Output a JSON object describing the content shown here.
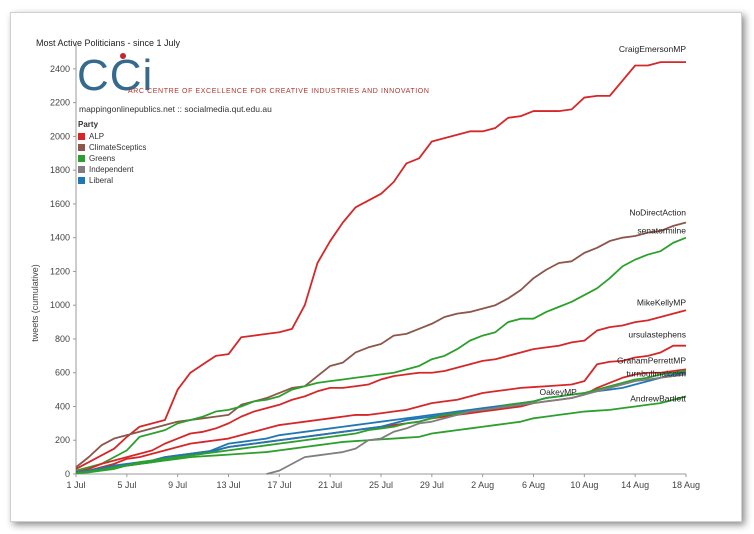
{
  "chart_data": {
    "type": "line",
    "title": "Most Active Politicians - since 1 July",
    "ylabel": "tweets (cumulative)",
    "xlabel": "",
    "ylim": [
      0,
      2500
    ],
    "x_ticks": [
      "1 Jul",
      "5 Jul",
      "9 Jul",
      "13 Jul",
      "17 Jul",
      "21 Jul",
      "25 Jul",
      "29 Jul",
      "2 Aug",
      "6 Aug",
      "10 Aug",
      "14 Aug",
      "18 Aug"
    ],
    "y_ticks": [
      0,
      200,
      400,
      600,
      800,
      1000,
      1200,
      1400,
      1600,
      1800,
      2000,
      2200,
      2400
    ],
    "grid": false,
    "legend_position": "top-left",
    "legend": {
      "title": "Party",
      "items": [
        {
          "label": "ALP",
          "color": "#d62728"
        },
        {
          "label": "ClimateSceptics",
          "color": "#8c564b"
        },
        {
          "label": "Greens",
          "color": "#2ca02c"
        },
        {
          "label": "Independent",
          "color": "#7f7f7f"
        },
        {
          "label": "Liberal",
          "color": "#1f77b4"
        }
      ]
    },
    "series": [
      {
        "name": "CraigEmersonMP",
        "party": "ALP",
        "color": "#d62728",
        "x": [
          0,
          1,
          2,
          3,
          4,
          5,
          6,
          7,
          8,
          9,
          10,
          11,
          12,
          13,
          14,
          15,
          16,
          17,
          18,
          19,
          20,
          21,
          22,
          23,
          24,
          25,
          26,
          27,
          28,
          29,
          30,
          31,
          32,
          33,
          34,
          35,
          36,
          37,
          38,
          39,
          40,
          41,
          42,
          43,
          44,
          45,
          46,
          47,
          48
        ],
        "y": [
          30,
          70,
          110,
          150,
          220,
          280,
          300,
          320,
          500,
          600,
          650,
          700,
          710,
          810,
          820,
          830,
          840,
          860,
          1000,
          1250,
          1380,
          1490,
          1580,
          1620,
          1660,
          1730,
          1840,
          1870,
          1970,
          1990,
          2010,
          2030,
          2030,
          2050,
          2110,
          2120,
          2150,
          2150,
          2150,
          2160,
          2230,
          2240,
          2240,
          2330,
          2420,
          2420,
          2440,
          2440,
          2440
        ]
      },
      {
        "name": "NoDirectAction",
        "party": "ClimateSceptics",
        "color": "#8c564b",
        "x": [
          0,
          1,
          2,
          3,
          4,
          5,
          6,
          7,
          8,
          9,
          10,
          11,
          12,
          13,
          14,
          15,
          16,
          17,
          18,
          19,
          20,
          21,
          22,
          23,
          24,
          25,
          26,
          27,
          28,
          29,
          30,
          31,
          32,
          33,
          34,
          35,
          36,
          37,
          38,
          39,
          40,
          41,
          42,
          43,
          44,
          45,
          46,
          47,
          48
        ],
        "y": [
          40,
          100,
          170,
          210,
          230,
          250,
          270,
          290,
          310,
          320,
          330,
          340,
          350,
          410,
          430,
          450,
          480,
          510,
          520,
          580,
          640,
          660,
          720,
          750,
          770,
          820,
          830,
          860,
          890,
          930,
          950,
          960,
          980,
          1000,
          1040,
          1090,
          1160,
          1210,
          1250,
          1260,
          1310,
          1340,
          1380,
          1400,
          1410,
          1430,
          1440,
          1470,
          1490
        ]
      },
      {
        "name": "senatormilne",
        "party": "Greens",
        "color": "#2ca02c",
        "x": [
          0,
          1,
          2,
          3,
          4,
          5,
          6,
          7,
          8,
          9,
          10,
          11,
          12,
          13,
          14,
          15,
          16,
          17,
          18,
          19,
          20,
          21,
          22,
          23,
          24,
          25,
          26,
          27,
          28,
          29,
          30,
          31,
          32,
          33,
          34,
          35,
          36,
          37,
          38,
          39,
          40,
          41,
          42,
          43,
          44,
          45,
          46,
          47,
          48
        ],
        "y": [
          20,
          40,
          60,
          100,
          140,
          220,
          240,
          260,
          300,
          320,
          340,
          370,
          380,
          400,
          430,
          440,
          460,
          500,
          520,
          540,
          550,
          560,
          570,
          580,
          590,
          600,
          620,
          640,
          680,
          700,
          740,
          790,
          820,
          840,
          900,
          920,
          920,
          960,
          990,
          1020,
          1060,
          1100,
          1160,
          1230,
          1270,
          1300,
          1320,
          1370,
          1400
        ]
      },
      {
        "name": "MikeKellyMP",
        "party": "ALP",
        "color": "#d62728",
        "x": [
          0,
          1,
          2,
          3,
          4,
          5,
          6,
          7,
          8,
          9,
          10,
          11,
          12,
          13,
          14,
          15,
          16,
          17,
          18,
          19,
          20,
          21,
          22,
          23,
          24,
          25,
          26,
          27,
          28,
          29,
          30,
          31,
          32,
          33,
          34,
          35,
          36,
          37,
          38,
          39,
          40,
          41,
          42,
          43,
          44,
          45,
          46,
          47,
          48
        ],
        "y": [
          10,
          30,
          60,
          80,
          100,
          120,
          140,
          180,
          210,
          240,
          250,
          270,
          300,
          340,
          370,
          390,
          410,
          440,
          460,
          490,
          510,
          510,
          520,
          530,
          560,
          580,
          590,
          600,
          600,
          610,
          630,
          650,
          670,
          680,
          700,
          720,
          740,
          750,
          760,
          780,
          790,
          850,
          870,
          880,
          900,
          910,
          930,
          950,
          970
        ]
      },
      {
        "name": "ursulastephens",
        "party": "ALP",
        "color": "#d62728",
        "x": [
          0,
          1,
          2,
          3,
          4,
          5,
          6,
          7,
          8,
          9,
          10,
          11,
          12,
          13,
          14,
          15,
          16,
          17,
          18,
          19,
          20,
          21,
          22,
          23,
          24,
          25,
          26,
          27,
          28,
          29,
          30,
          31,
          32,
          33,
          34,
          35,
          36,
          37,
          38,
          39,
          40,
          41,
          42,
          43,
          44,
          45,
          46,
          47,
          48
        ],
        "y": [
          10,
          20,
          40,
          60,
          90,
          100,
          120,
          140,
          160,
          180,
          190,
          200,
          210,
          230,
          250,
          270,
          290,
          300,
          310,
          320,
          330,
          340,
          350,
          350,
          360,
          370,
          380,
          400,
          420,
          430,
          440,
          460,
          480,
          490,
          500,
          510,
          515,
          520,
          525,
          530,
          550,
          650,
          665,
          670,
          690,
          700,
          720,
          760,
          760
        ]
      },
      {
        "name": "GrahamPerrettMP",
        "party": "ALP",
        "color": "#d62728",
        "x": [
          0,
          1,
          2,
          3,
          4,
          5,
          6,
          7,
          8,
          9,
          10,
          11,
          12,
          13,
          14,
          15,
          16,
          17,
          18,
          19,
          20,
          21,
          22,
          23,
          24,
          25,
          26,
          27,
          28,
          29,
          30,
          31,
          32,
          33,
          34,
          35,
          36,
          37,
          38,
          39,
          40,
          41,
          42,
          43,
          44,
          45,
          46,
          47,
          48
        ],
        "y": [
          5,
          15,
          30,
          40,
          50,
          60,
          80,
          100,
          110,
          120,
          130,
          140,
          160,
          170,
          180,
          190,
          200,
          210,
          220,
          230,
          240,
          250,
          260,
          270,
          280,
          290,
          300,
          310,
          330,
          340,
          350,
          360,
          370,
          380,
          390,
          400,
          420,
          430,
          440,
          450,
          470,
          510,
          540,
          570,
          590,
          600,
          600,
          610,
          620
        ]
      },
      {
        "name": "OakeyMP",
        "party": "Liberal",
        "color": "#1f77b4",
        "x": [
          0,
          1,
          2,
          3,
          4,
          5,
          6,
          7,
          8,
          9,
          10,
          11,
          12,
          13,
          14,
          15,
          16,
          17,
          18,
          19,
          20,
          21,
          22,
          23,
          24,
          25,
          26,
          27,
          28,
          29,
          30,
          31,
          32,
          33,
          34,
          35,
          36
        ],
        "y": [
          5,
          20,
          35,
          50,
          60,
          70,
          80,
          100,
          110,
          120,
          130,
          140,
          160,
          170,
          180,
          190,
          200,
          210,
          220,
          230,
          240,
          250,
          260,
          270,
          280,
          300,
          320,
          330,
          340,
          350,
          360,
          370,
          380,
          390,
          400,
          410,
          420
        ]
      },
      {
        "name": "turnbullmalcolm",
        "party": "Liberal",
        "color": "#1f77b4",
        "x": [
          0,
          1,
          2,
          3,
          4,
          5,
          6,
          7,
          8,
          9,
          10,
          11,
          12,
          13,
          14,
          15,
          16,
          17,
          18,
          19,
          20,
          21,
          22,
          23,
          24,
          25,
          26,
          27,
          28,
          29,
          30,
          31,
          32,
          33,
          34,
          35,
          36,
          37,
          38,
          39,
          40,
          41,
          42,
          43,
          44,
          45,
          46,
          47,
          48
        ],
        "y": [
          10,
          20,
          30,
          40,
          50,
          60,
          70,
          90,
          100,
          110,
          120,
          150,
          180,
          190,
          200,
          210,
          230,
          240,
          250,
          260,
          270,
          280,
          290,
          300,
          310,
          320,
          330,
          340,
          350,
          360,
          370,
          380,
          390,
          400,
          410,
          420,
          430,
          450,
          460,
          470,
          480,
          490,
          500,
          510,
          530,
          550,
          570,
          590,
          600
        ]
      },
      {
        "name": "AndrewBartlett",
        "party": "Greens",
        "color": "#2ca02c",
        "x": [
          0,
          1,
          2,
          3,
          4,
          5,
          6,
          7,
          8,
          9,
          10,
          11,
          12,
          13,
          14,
          15,
          16,
          17,
          18,
          19,
          20,
          21,
          22,
          23,
          24,
          25,
          26,
          27,
          28,
          29,
          30,
          31,
          32,
          33,
          34,
          35,
          36,
          37,
          38,
          39,
          40,
          41,
          42,
          43,
          44,
          45,
          46,
          47,
          48
        ],
        "y": [
          5,
          15,
          25,
          40,
          50,
          60,
          70,
          80,
          90,
          100,
          105,
          110,
          115,
          120,
          125,
          130,
          140,
          150,
          160,
          170,
          180,
          190,
          195,
          200,
          205,
          210,
          215,
          220,
          240,
          250,
          260,
          270,
          280,
          290,
          300,
          310,
          330,
          340,
          350,
          360,
          370,
          375,
          380,
          390,
          400,
          410,
          420,
          440,
          460
        ]
      },
      {
        "name": "",
        "party": "Greens",
        "color": "#2ca02c",
        "x": [
          0,
          1,
          2,
          3,
          4,
          5,
          6,
          7,
          8,
          9,
          10,
          11,
          12,
          13,
          14,
          15,
          16,
          17,
          18,
          19,
          20,
          21,
          22,
          23,
          24,
          25,
          26,
          27,
          28,
          29,
          30,
          31,
          32,
          33,
          34,
          35,
          36,
          37,
          38,
          39,
          40,
          41,
          42,
          43,
          44,
          45,
          46,
          47,
          48
        ],
        "y": [
          5,
          10,
          20,
          30,
          50,
          70,
          80,
          90,
          100,
          110,
          120,
          130,
          140,
          150,
          160,
          170,
          180,
          190,
          200,
          210,
          220,
          230,
          240,
          260,
          270,
          280,
          300,
          310,
          330,
          350,
          360,
          370,
          380,
          390,
          410,
          420,
          430,
          450,
          460,
          470,
          480,
          500,
          520,
          540,
          560,
          570,
          590,
          600,
          610
        ]
      },
      {
        "name": "",
        "party": "Independent",
        "color": "#7f7f7f",
        "x": [
          15,
          16,
          17,
          18,
          19,
          20,
          21,
          22,
          23,
          24,
          25,
          26,
          27,
          28,
          29,
          30,
          31,
          32,
          33,
          34,
          35,
          36,
          37,
          38,
          39,
          40,
          41,
          42,
          43,
          44,
          45,
          46,
          47,
          48
        ],
        "y": [
          0,
          20,
          60,
          100,
          110,
          120,
          130,
          150,
          200,
          210,
          250,
          270,
          300,
          310,
          330,
          350,
          370,
          380,
          390,
          400,
          410,
          420,
          430,
          440,
          450,
          470,
          490,
          510,
          530,
          550,
          560,
          570,
          580,
          590
        ]
      }
    ],
    "series_labels": [
      {
        "name": "CraigEmersonMP",
        "text": "CraigEmersonMP"
      },
      {
        "name": "NoDirectAction",
        "text": "NoDirectAction"
      },
      {
        "name": "senatormilne",
        "text": "senatormilne"
      },
      {
        "name": "MikeKellyMP",
        "text": "MikeKellyMP"
      },
      {
        "name": "ursulastephens",
        "text": "ursulastephens"
      },
      {
        "name": "GrahamPerrettMP",
        "text": "GrahamPerrettMP"
      },
      {
        "name": "turnbullmalcolm",
        "text": "turnbullmalcolm"
      },
      {
        "name": "AndrewBartlett",
        "text": "AndrewBartlett"
      },
      {
        "name": "OakeyMP",
        "text": "OakeyMP"
      }
    ]
  },
  "header": {
    "logo_text": "CCi",
    "org_name": "ARC CENTRE OF EXCELLENCE FOR CREATIVE INDUSTRIES AND INNOVATION",
    "site": "mappingonlinepublics.net :: socialmedia.qut.edu.au"
  }
}
